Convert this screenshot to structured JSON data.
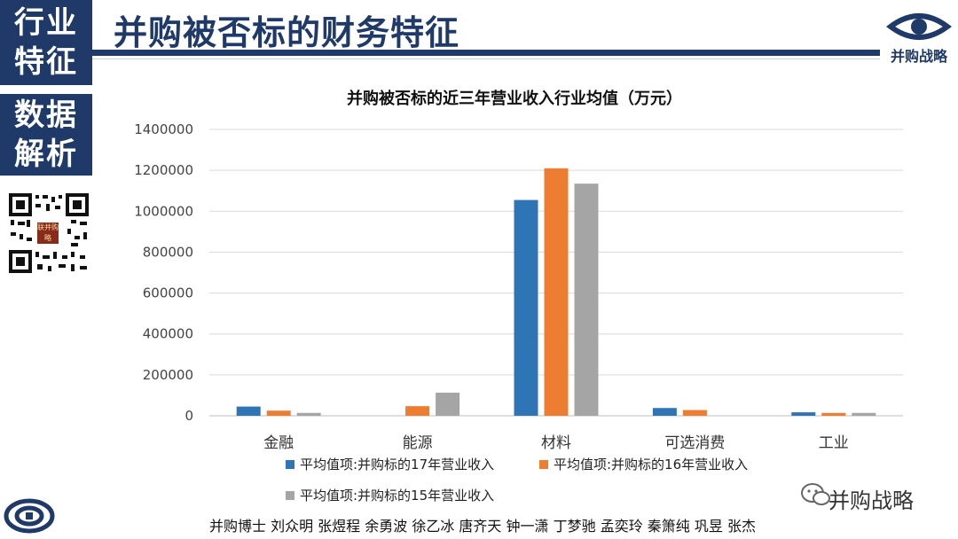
{
  "sidebar": {
    "box1": [
      "行业",
      "特征"
    ],
    "box2": [
      "数据",
      "解析"
    ],
    "qr_badge": "联并购略"
  },
  "header": {
    "title": "并购被否标的财务特征",
    "logo_text": "并购战略"
  },
  "footer": {
    "credits": "并购博士 刘众明 张煜程 余勇波 徐乙冰 唐齐天 钟一潇 丁梦驰 孟奕玲 秦箫纯 巩昱 张杰",
    "wechat_label": "并购战略"
  },
  "colors": {
    "navy": "#1f3a68",
    "series17": "#2e75b6",
    "series16": "#ed7d31",
    "series15": "#a5a5a5",
    "grid": "#d9d9d9"
  },
  "chart_data": {
    "type": "bar",
    "title": "并购被否标的近三年营业收入行业均值（万元）",
    "categories": [
      "金融",
      "能源",
      "材料",
      "可选消费",
      "工业"
    ],
    "series": [
      {
        "name": "平均值项:并购标的17年营业收入",
        "values": [
          45000,
          0,
          1055000,
          38000,
          17000
        ]
      },
      {
        "name": "平均值项:并购标的16年营业收入",
        "values": [
          25000,
          47000,
          1210000,
          28000,
          14000
        ]
      },
      {
        "name": "平均值项:并购标的15年营业收入",
        "values": [
          14000,
          113000,
          1135000,
          0,
          14000
        ]
      }
    ],
    "ylim": [
      0,
      1400000
    ],
    "yticks": [
      "0",
      "200000",
      "400000",
      "600000",
      "800000",
      "1000000",
      "1200000",
      "1400000"
    ],
    "ytick_values": [
      0,
      200000,
      400000,
      600000,
      800000,
      1000000,
      1200000,
      1400000
    ],
    "grid": true,
    "legend_position": "bottom"
  }
}
